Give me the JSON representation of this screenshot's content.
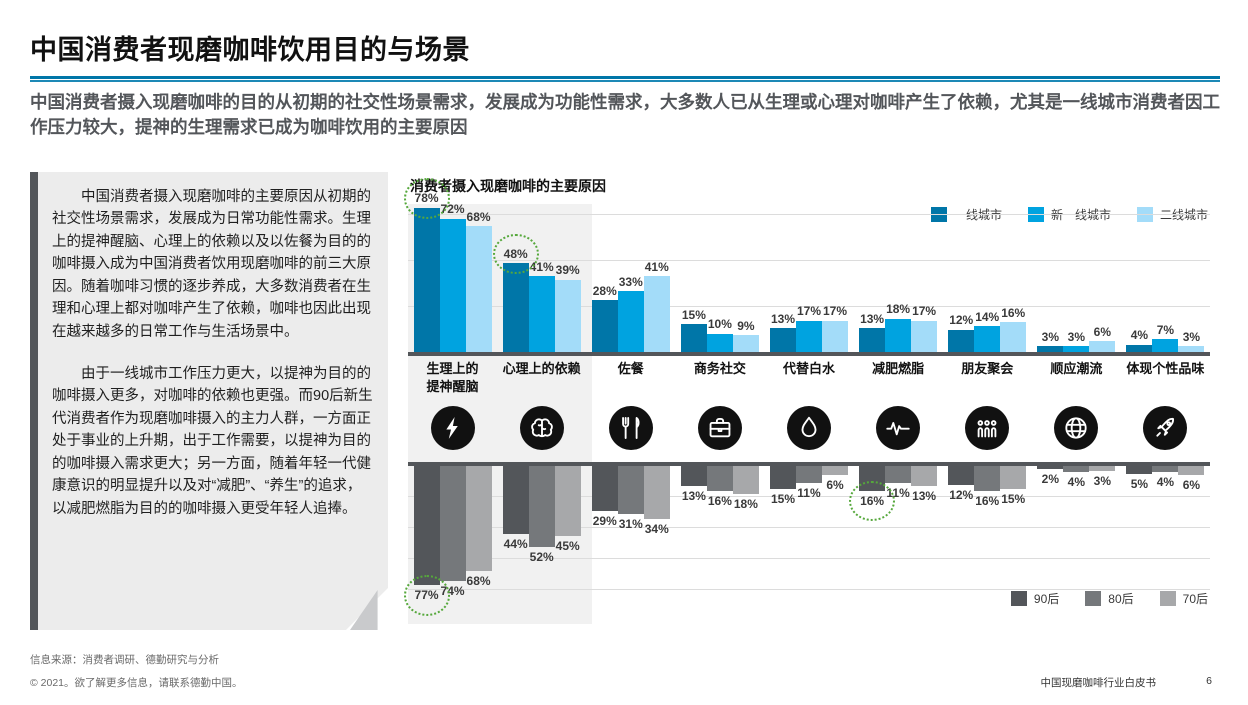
{
  "header": {
    "title": "中国消费者现磨咖啡饮用目的与场景",
    "subtitle": "中国消费者摄入现磨咖啡的目的从初期的社交性场景需求，发展成为功能性需求，大多数人已从生理或心理对咖啡产生了依赖，尤其是一线城市消费者因工作压力较大，提神的生理需求已成为咖啡饮用的主要原因"
  },
  "sidebar": {
    "paragraphs": [
      "中国消费者摄入现磨咖啡的主要原因从初期的社交性场景需求，发展成为日常功能性需求。生理上的提神醒脑、心理上的依赖以及以佐餐为目的的咖啡摄入成为中国消费者饮用现磨咖啡的前三大原因。随着咖啡习惯的逐步养成，大多数消费者在生理和心理上都对咖啡产生了依赖，咖啡也因此出现在越来越多的日常工作与生活场景中。",
      "由于一线城市工作压力更大，以提神为目的的咖啡摄入更多，对咖啡的依赖也更强。而90后新生代消费者作为现磨咖啡摄入的主力人群，一方面正处于事业的上升期，出于工作需要，以提神为目的的咖啡摄入需求更大；另一方面，随着年轻一代健康意识的明显提升以及对“减肥”、“养生”的追求，以减肥燃脂为目的的咖啡摄入更受年轻人追捧。"
    ]
  },
  "chart_data": {
    "type": "bar",
    "title": "消费者摄入现磨咖啡的主要原因",
    "unit": "%",
    "categories": [
      "生理上的\n提神醒脑",
      "心理上的依赖",
      "佐餐",
      "商务社交",
      "代替白水",
      "减肥燃脂",
      "朋友聚会",
      "顺应潮流",
      "体现个性品味"
    ],
    "icons": [
      "bolt",
      "brain",
      "utensils",
      "briefcase",
      "droplet",
      "pulse",
      "people",
      "globe",
      "rocket"
    ],
    "top": {
      "direction": "up",
      "legend_position": "top-right",
      "series": [
        {
          "name": "一线城市",
          "color": "#0076A8",
          "values": [
            78,
            48,
            28,
            15,
            13,
            13,
            12,
            3,
            4
          ]
        },
        {
          "name": "新一线城市",
          "color": "#00A3E0",
          "values": [
            72,
            41,
            33,
            10,
            17,
            18,
            14,
            3,
            7
          ]
        },
        {
          "name": "二线城市",
          "color": "#A3DCF9",
          "values": [
            68,
            39,
            41,
            9,
            17,
            17,
            16,
            6,
            3
          ]
        }
      ]
    },
    "bottom": {
      "direction": "down",
      "legend_position": "bottom-right",
      "series": [
        {
          "name": "90后",
          "color": "#53565A",
          "values": [
            77,
            44,
            29,
            13,
            15,
            16,
            12,
            2,
            5
          ]
        },
        {
          "name": "80后",
          "color": "#75787B",
          "values": [
            74,
            52,
            31,
            16,
            11,
            11,
            16,
            4,
            4
          ]
        },
        {
          "name": "70后",
          "color": "#A7A8AA",
          "values": [
            68,
            45,
            34,
            18,
            6,
            13,
            15,
            3,
            6
          ]
        }
      ]
    },
    "annotations": [
      {
        "chart": "top",
        "group": 0,
        "series": 0,
        "label": "78%"
      },
      {
        "chart": "top",
        "group": 1,
        "series": 0,
        "label": "48%"
      },
      {
        "chart": "bottom",
        "group": 0,
        "series": 0,
        "label": "77%"
      },
      {
        "chart": "bottom",
        "group": 5,
        "series": 0,
        "label": "16%"
      }
    ],
    "annotation_color": "#56A83C",
    "highlight_groups": [
      0,
      1
    ],
    "highlight_color": "#f1f1f1",
    "axis_color": "#53565A"
  },
  "footer": {
    "source": "信息来源：消费者调研、德勤研究与分析",
    "copyright": "© 2021。欲了解更多信息，请联系德勤中国。",
    "doc_title": "中国现磨咖啡行业白皮书",
    "page_number": "6"
  }
}
